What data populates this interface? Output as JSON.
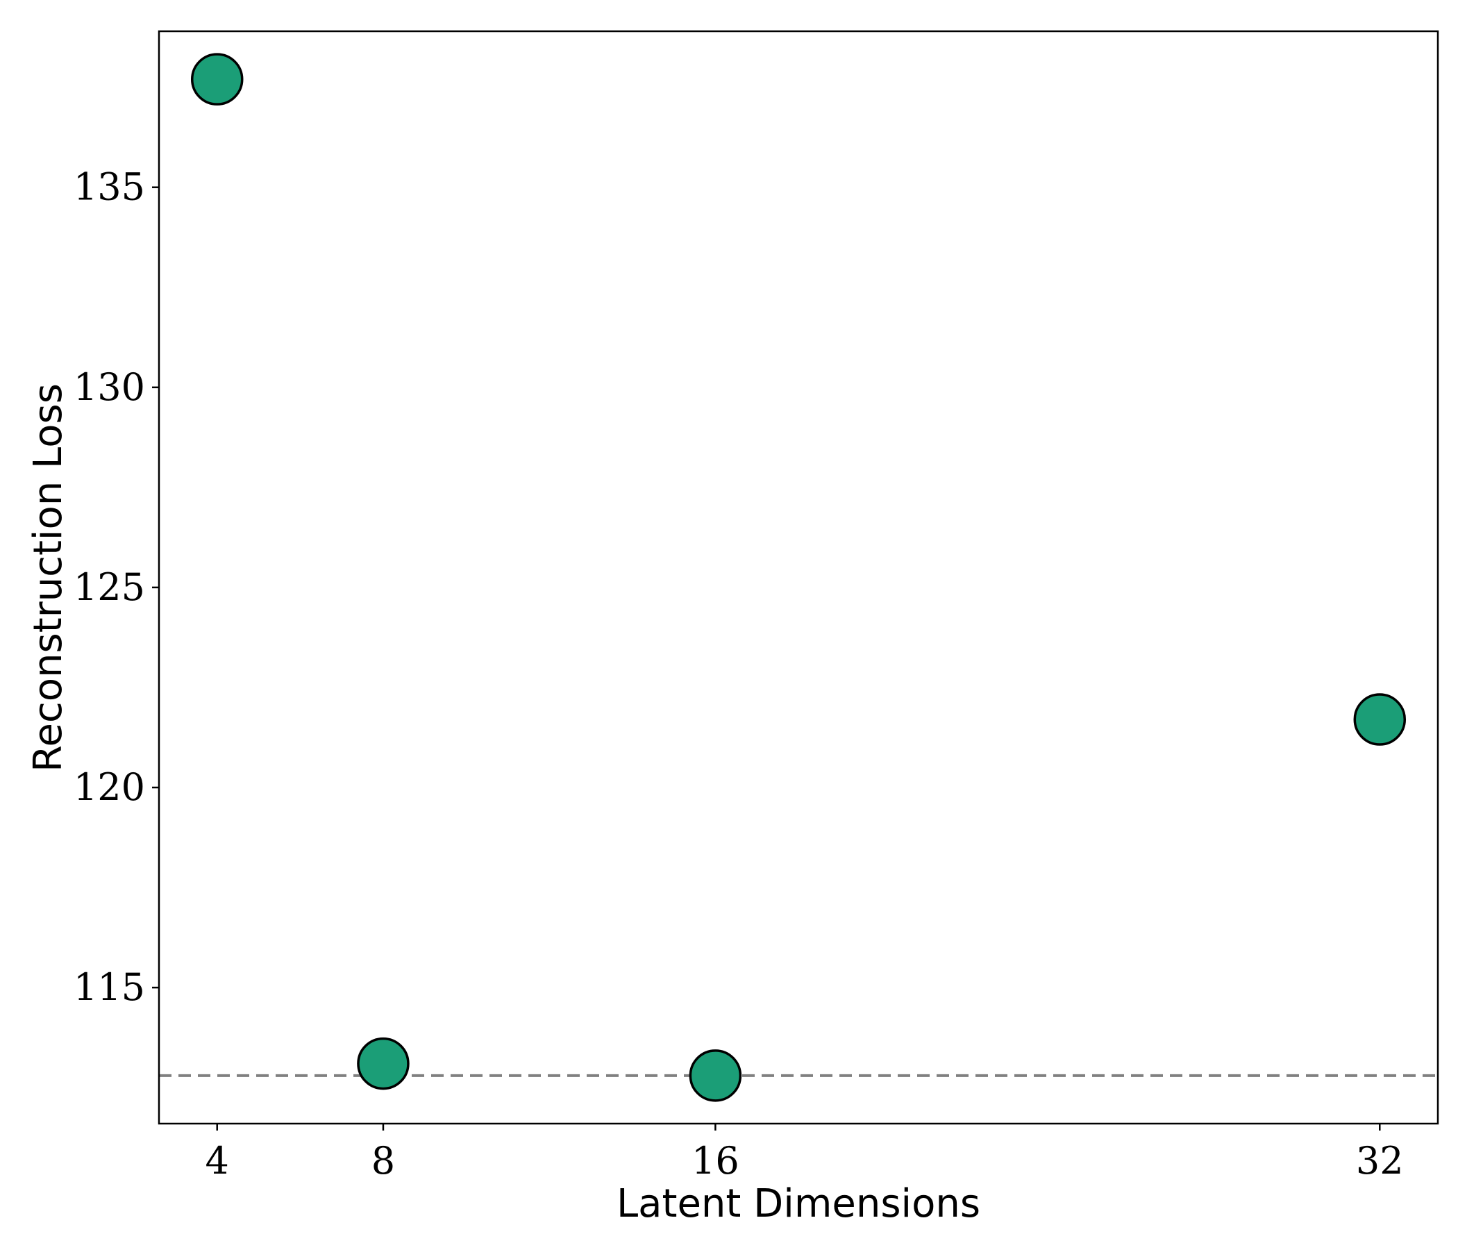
{
  "chart_data": {
    "type": "scatter",
    "title": "",
    "xlabel": "Latent Dimensions",
    "ylabel": "Reconstruction Loss",
    "x_ticks": [
      4,
      8,
      16,
      32
    ],
    "y_ticks": [
      115,
      120,
      125,
      130,
      135
    ],
    "xlim": [
      2.6,
      33.4
    ],
    "ylim": [
      111.6,
      138.9
    ],
    "grid": false,
    "legend": "none",
    "series": [
      {
        "x": [
          4,
          8,
          16,
          32
        ],
        "y": [
          137.7,
          113.1,
          112.8,
          121.7
        ],
        "color": "#1b9e77",
        "edge_color": "#000000"
      }
    ],
    "reference_line": {
      "y": 112.8,
      "style": "dashed",
      "color": "#808080"
    }
  }
}
